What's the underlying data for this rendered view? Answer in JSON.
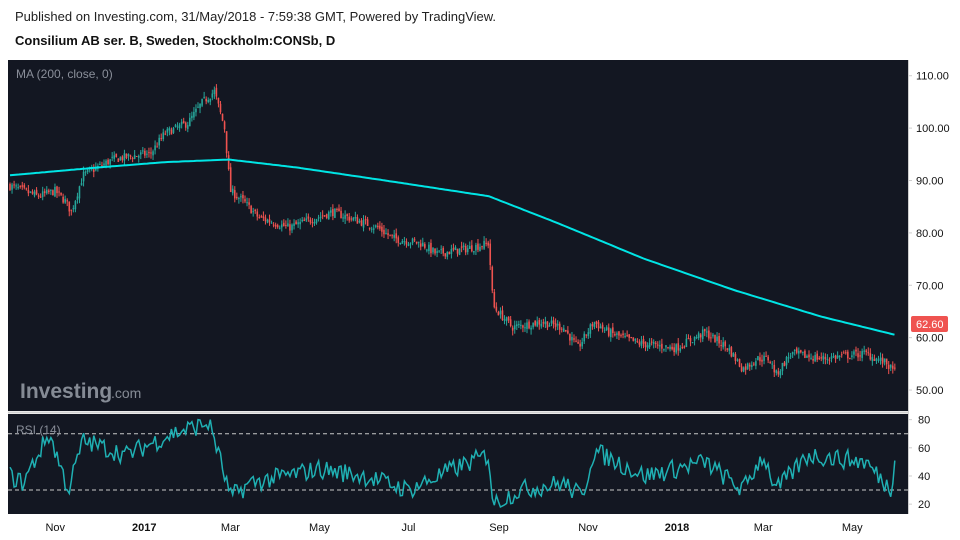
{
  "header": {
    "published": "Published on Investing.com, 31/May/2018 - 7:59:38 GMT, Powered by TradingView.",
    "instrument": "Consilium AB ser. B, Sweden, Stockholm:CONSb, D"
  },
  "watermark": {
    "brand": "Investing",
    "suffix": ".com"
  },
  "colors": {
    "background": "#131722",
    "up": "#26a69a",
    "down": "#ef5350",
    "ma": "#00e5e5",
    "rsi": "#1fb0b3",
    "last_price_bg": "#ef5350"
  },
  "chart_data": [
    {
      "type": "candlestick",
      "indicator_label": "MA (200, close, 0)",
      "ylim": [
        46,
        113
      ],
      "y_ticks": [
        "110.00",
        "100.00",
        "90.00",
        "80.00",
        "70.00",
        "60.00",
        "50.00"
      ],
      "last_price_label": "62.60",
      "x_ticks": [
        "Nov",
        "2017",
        "Mar",
        "May",
        "Jul",
        "Sep",
        "Nov",
        "2018",
        "Mar",
        "May"
      ],
      "close_anchors": [
        [
          "2016-10-01",
          89
        ],
        [
          "2016-10-20",
          87
        ],
        [
          "2016-11-01",
          88
        ],
        [
          "2016-11-08",
          86
        ],
        [
          "2016-11-12",
          84
        ],
        [
          "2016-11-20",
          91
        ],
        [
          "2016-12-10",
          94
        ],
        [
          "2016-12-31",
          95
        ],
        [
          "2017-01-05",
          95
        ],
        [
          "2017-01-15",
          99
        ],
        [
          "2017-01-31",
          101
        ],
        [
          "2017-02-10",
          105
        ],
        [
          "2017-02-18",
          107
        ],
        [
          "2017-02-25",
          100
        ],
        [
          "2017-03-01",
          88
        ],
        [
          "2017-03-10",
          86
        ],
        [
          "2017-03-20",
          83
        ],
        [
          "2017-04-10",
          81
        ],
        [
          "2017-05-10",
          84
        ],
        [
          "2017-06-10",
          81
        ],
        [
          "2017-06-20",
          79
        ],
        [
          "2017-07-10",
          78
        ],
        [
          "2017-07-20",
          76
        ],
        [
          "2017-08-10",
          77
        ],
        [
          "2017-08-25",
          78
        ],
        [
          "2017-08-28",
          66
        ],
        [
          "2017-09-10",
          62
        ],
        [
          "2017-09-30",
          63
        ],
        [
          "2017-10-15",
          62
        ],
        [
          "2017-10-25",
          58
        ],
        [
          "2017-11-05",
          63
        ],
        [
          "2017-11-15",
          61
        ],
        [
          "2017-12-05",
          59
        ],
        [
          "2017-12-31",
          58
        ],
        [
          "2018-01-20",
          61
        ],
        [
          "2018-02-05",
          58
        ],
        [
          "2018-02-15",
          54
        ],
        [
          "2018-02-25",
          56
        ],
        [
          "2018-03-05",
          56
        ],
        [
          "2018-03-10",
          53
        ],
        [
          "2018-03-20",
          57
        ],
        [
          "2018-04-10",
          56
        ],
        [
          "2018-05-10",
          57
        ],
        [
          "2018-05-25",
          55
        ],
        [
          "2018-05-30",
          53
        ],
        [
          "2018-05-31",
          62.6
        ]
      ],
      "ma_anchors": [
        [
          "2016-10-01",
          91
        ],
        [
          "2016-12-01",
          92.5
        ],
        [
          "2017-01-15",
          93.5
        ],
        [
          "2017-02-28",
          94
        ],
        [
          "2017-04-15",
          92.5
        ],
        [
          "2017-06-15",
          90
        ],
        [
          "2017-08-25",
          87
        ],
        [
          "2017-10-10",
          82
        ],
        [
          "2017-12-10",
          75
        ],
        [
          "2018-02-10",
          69
        ],
        [
          "2018-04-10",
          64
        ],
        [
          "2018-05-31",
          60.5
        ]
      ]
    },
    {
      "type": "line",
      "indicator_label": "RSI (14)",
      "ylim": [
        13,
        84
      ],
      "y_ticks": [
        "80",
        "60",
        "40",
        "20"
      ],
      "bands": [
        30,
        70
      ],
      "anchors": [
        [
          "2016-10-01",
          40
        ],
        [
          "2016-10-10",
          35
        ],
        [
          "2016-10-20",
          55
        ],
        [
          "2016-10-28",
          70
        ],
        [
          "2016-11-10",
          30
        ],
        [
          "2016-11-20",
          65
        ],
        [
          "2016-12-20",
          55
        ],
        [
          "2017-01-20",
          70
        ],
        [
          "2017-02-15",
          78
        ],
        [
          "2017-02-25",
          40
        ],
        [
          "2017-03-01",
          25
        ],
        [
          "2017-03-15",
          35
        ],
        [
          "2017-05-01",
          45
        ],
        [
          "2017-06-01",
          40
        ],
        [
          "2017-07-01",
          30
        ],
        [
          "2017-08-01",
          45
        ],
        [
          "2017-08-25",
          55
        ],
        [
          "2017-08-28",
          20
        ],
        [
          "2017-09-15",
          30
        ],
        [
          "2017-10-15",
          35
        ],
        [
          "2017-10-28",
          25
        ],
        [
          "2017-11-05",
          58
        ],
        [
          "2017-12-10",
          40
        ],
        [
          "2018-01-20",
          50
        ],
        [
          "2018-02-15",
          30
        ],
        [
          "2018-03-01",
          55
        ],
        [
          "2018-03-10",
          30
        ],
        [
          "2018-04-01",
          55
        ],
        [
          "2018-05-10",
          50
        ],
        [
          "2018-05-28",
          30
        ],
        [
          "2018-05-31",
          68
        ]
      ]
    }
  ]
}
